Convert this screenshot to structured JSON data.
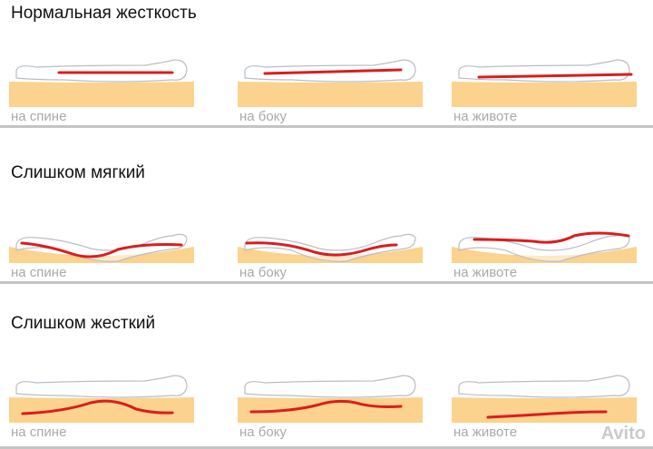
{
  "colors": {
    "mattress": "#fbd28e",
    "spine": "#d81e1e",
    "body_outline": "#b8bec6",
    "label": "#a9a9a9",
    "divider": "#c4c4c4"
  },
  "sections": [
    {
      "title": "Нормальная жесткость",
      "panels": [
        {
          "label": "на спине",
          "posture": "straight"
        },
        {
          "label": "на боку",
          "posture": "straight"
        },
        {
          "label": "на животе",
          "posture": "straight"
        }
      ]
    },
    {
      "title": "Слишком мягкий",
      "panels": [
        {
          "label": "на спине",
          "posture": "sagging"
        },
        {
          "label": "на боку",
          "posture": "sagging"
        },
        {
          "label": "на животе",
          "posture": "sagging"
        }
      ]
    },
    {
      "title": "Слишком жесткий",
      "panels": [
        {
          "label": "на спине",
          "posture": "arched"
        },
        {
          "label": "на боку",
          "posture": "arched"
        },
        {
          "label": "на животе",
          "posture": "arched"
        }
      ]
    }
  ],
  "watermark": "Avito"
}
